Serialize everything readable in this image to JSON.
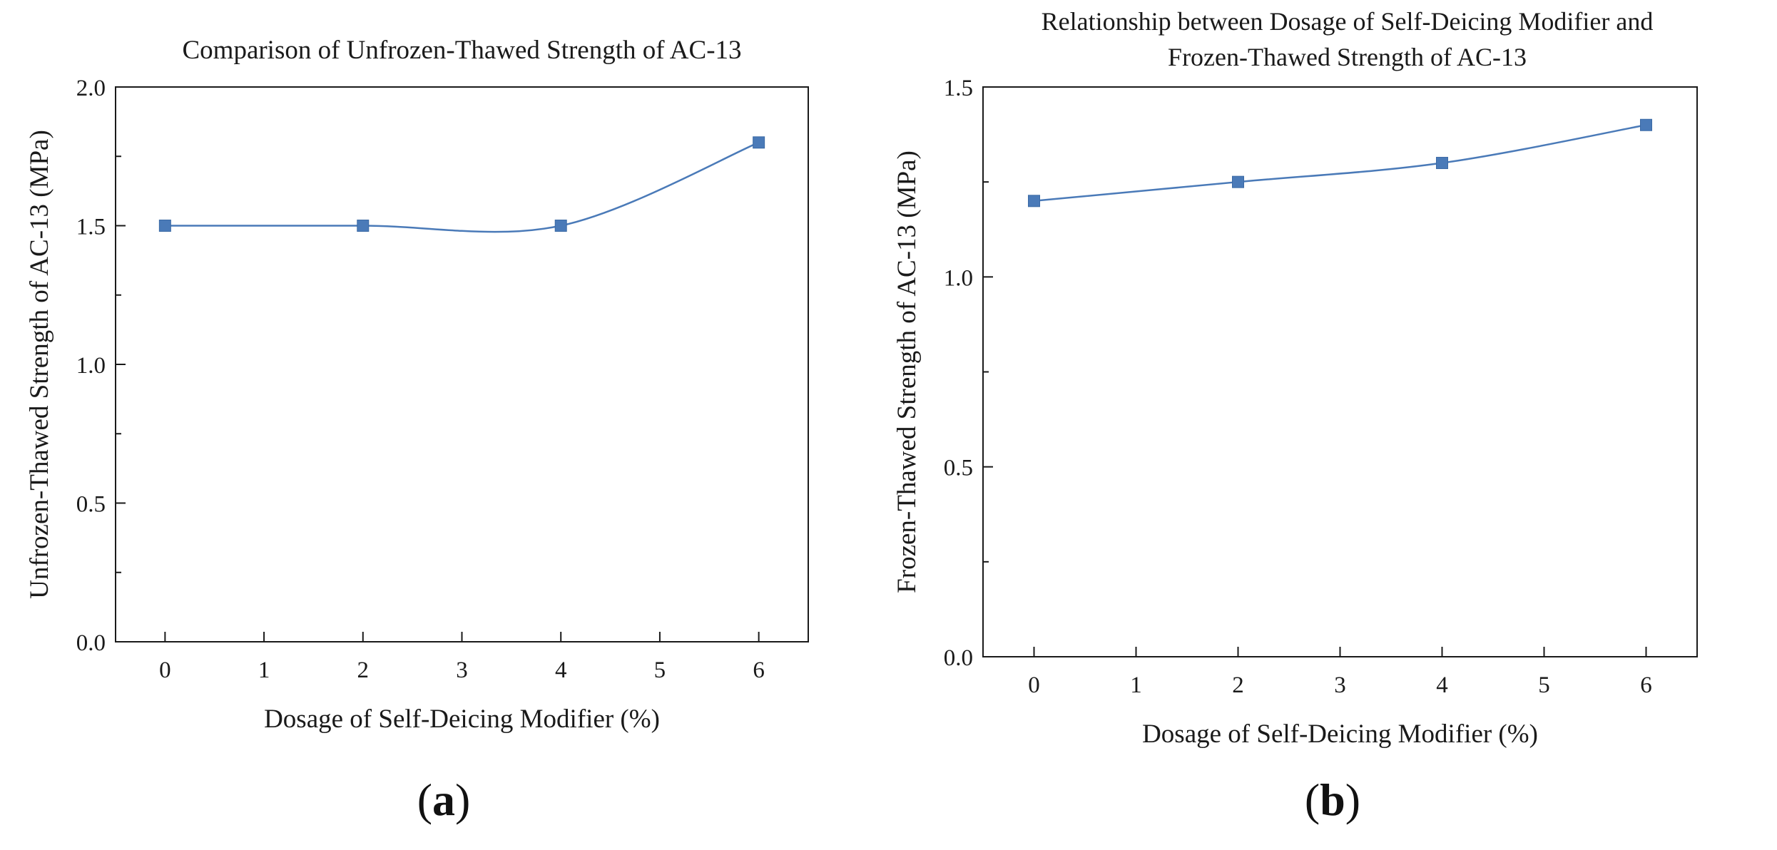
{
  "chart_data": [
    {
      "type": "line",
      "title": "Comparison of Unfrozen-Thawed Strength of AC-13",
      "xlabel": "Dosage of Self-Deicing Modifier (%)",
      "ylabel": "Unfrozen-Thawed Strength of AC-13 (MPa)",
      "x": [
        0,
        2,
        4,
        6
      ],
      "series": [
        {
          "values": [
            1.5,
            1.5,
            1.5,
            1.8
          ]
        }
      ],
      "xlim": [
        -0.5,
        6.5
      ],
      "ylim": [
        0,
        2.0
      ],
      "xticks": [
        "0",
        "1",
        "2",
        "3",
        "4",
        "5",
        "6"
      ],
      "yticks": [
        "0.0",
        "0.5",
        "1.0",
        "1.5",
        "2.0"
      ],
      "grid": false,
      "smooth": true,
      "marker": "square",
      "color": "#4a7ab8"
    },
    {
      "type": "line",
      "title_lines": [
        "Relationship between Dosage of Self-Deicing Modifier and",
        "Frozen-Thawed Strength of AC-13"
      ],
      "xlabel": "Dosage of Self-Deicing Modifier (%)",
      "ylabel": "Frozen-Thawed Strength of AC-13 (MPa)",
      "x": [
        0,
        2,
        4,
        6
      ],
      "series": [
        {
          "values": [
            1.2,
            1.25,
            1.3,
            1.4
          ]
        }
      ],
      "xlim": [
        -0.5,
        6.5
      ],
      "ylim": [
        0,
        1.5
      ],
      "xticks": [
        "0",
        "1",
        "2",
        "3",
        "4",
        "5",
        "6"
      ],
      "yticks": [
        "0.0",
        "0.5",
        "1.0",
        "1.5"
      ],
      "grid": false,
      "smooth": true,
      "marker": "square",
      "color": "#4a7ab8"
    }
  ],
  "captions": {
    "a": "a",
    "b": "b"
  }
}
